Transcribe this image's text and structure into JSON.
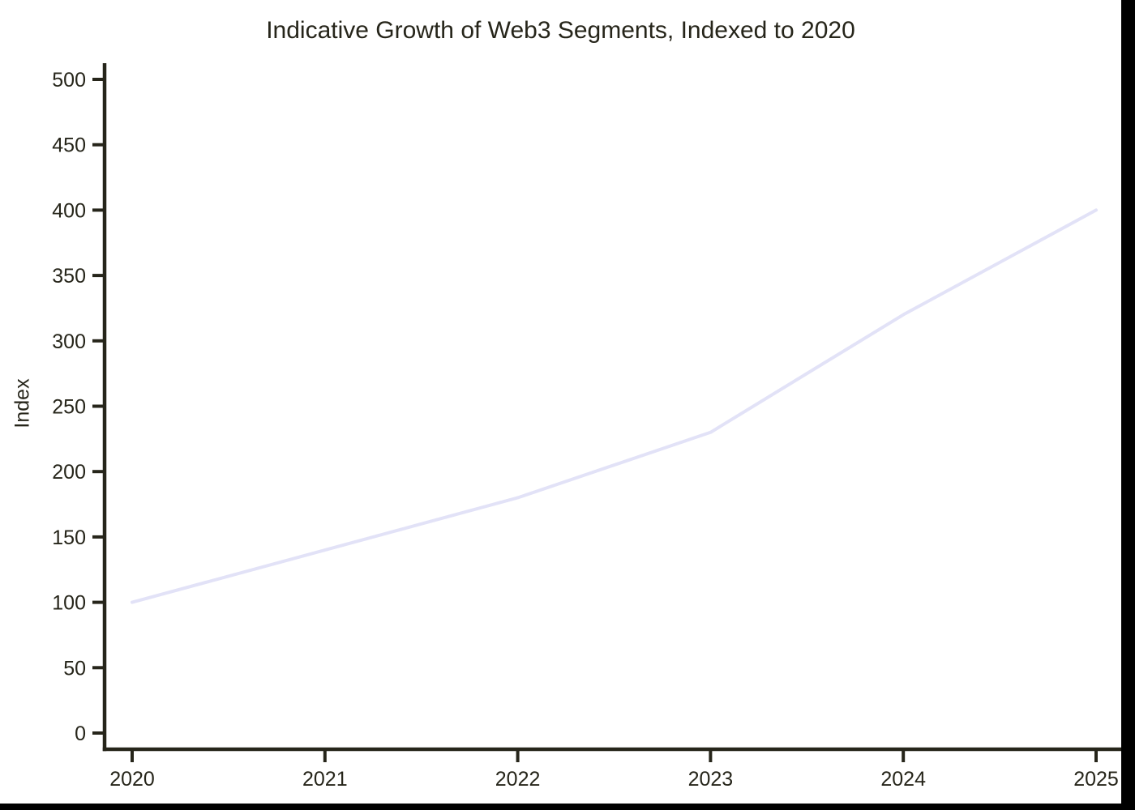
{
  "figure": {
    "background": "#ffffff",
    "frame_background": "#000000"
  },
  "chart_data": {
    "type": "line",
    "title": "Indicative Growth of Web3 Segments, Indexed to 2020",
    "xlabel": "",
    "ylabel": "Index",
    "x": [
      2020,
      2021,
      2022,
      2023,
      2024,
      2025
    ],
    "series": [
      {
        "values": [
          100,
          140,
          180,
          230,
          320,
          400
        ],
        "color": "#e2e2f7"
      }
    ],
    "ylim": [
      0,
      500
    ],
    "yticks": [
      0,
      50,
      100,
      150,
      200,
      250,
      300,
      350,
      400,
      450,
      500
    ],
    "xticks": [
      2020,
      2021,
      2022,
      2023,
      2024,
      2025
    ],
    "grid": false,
    "legend": "none",
    "axis_color": "#26251a"
  }
}
